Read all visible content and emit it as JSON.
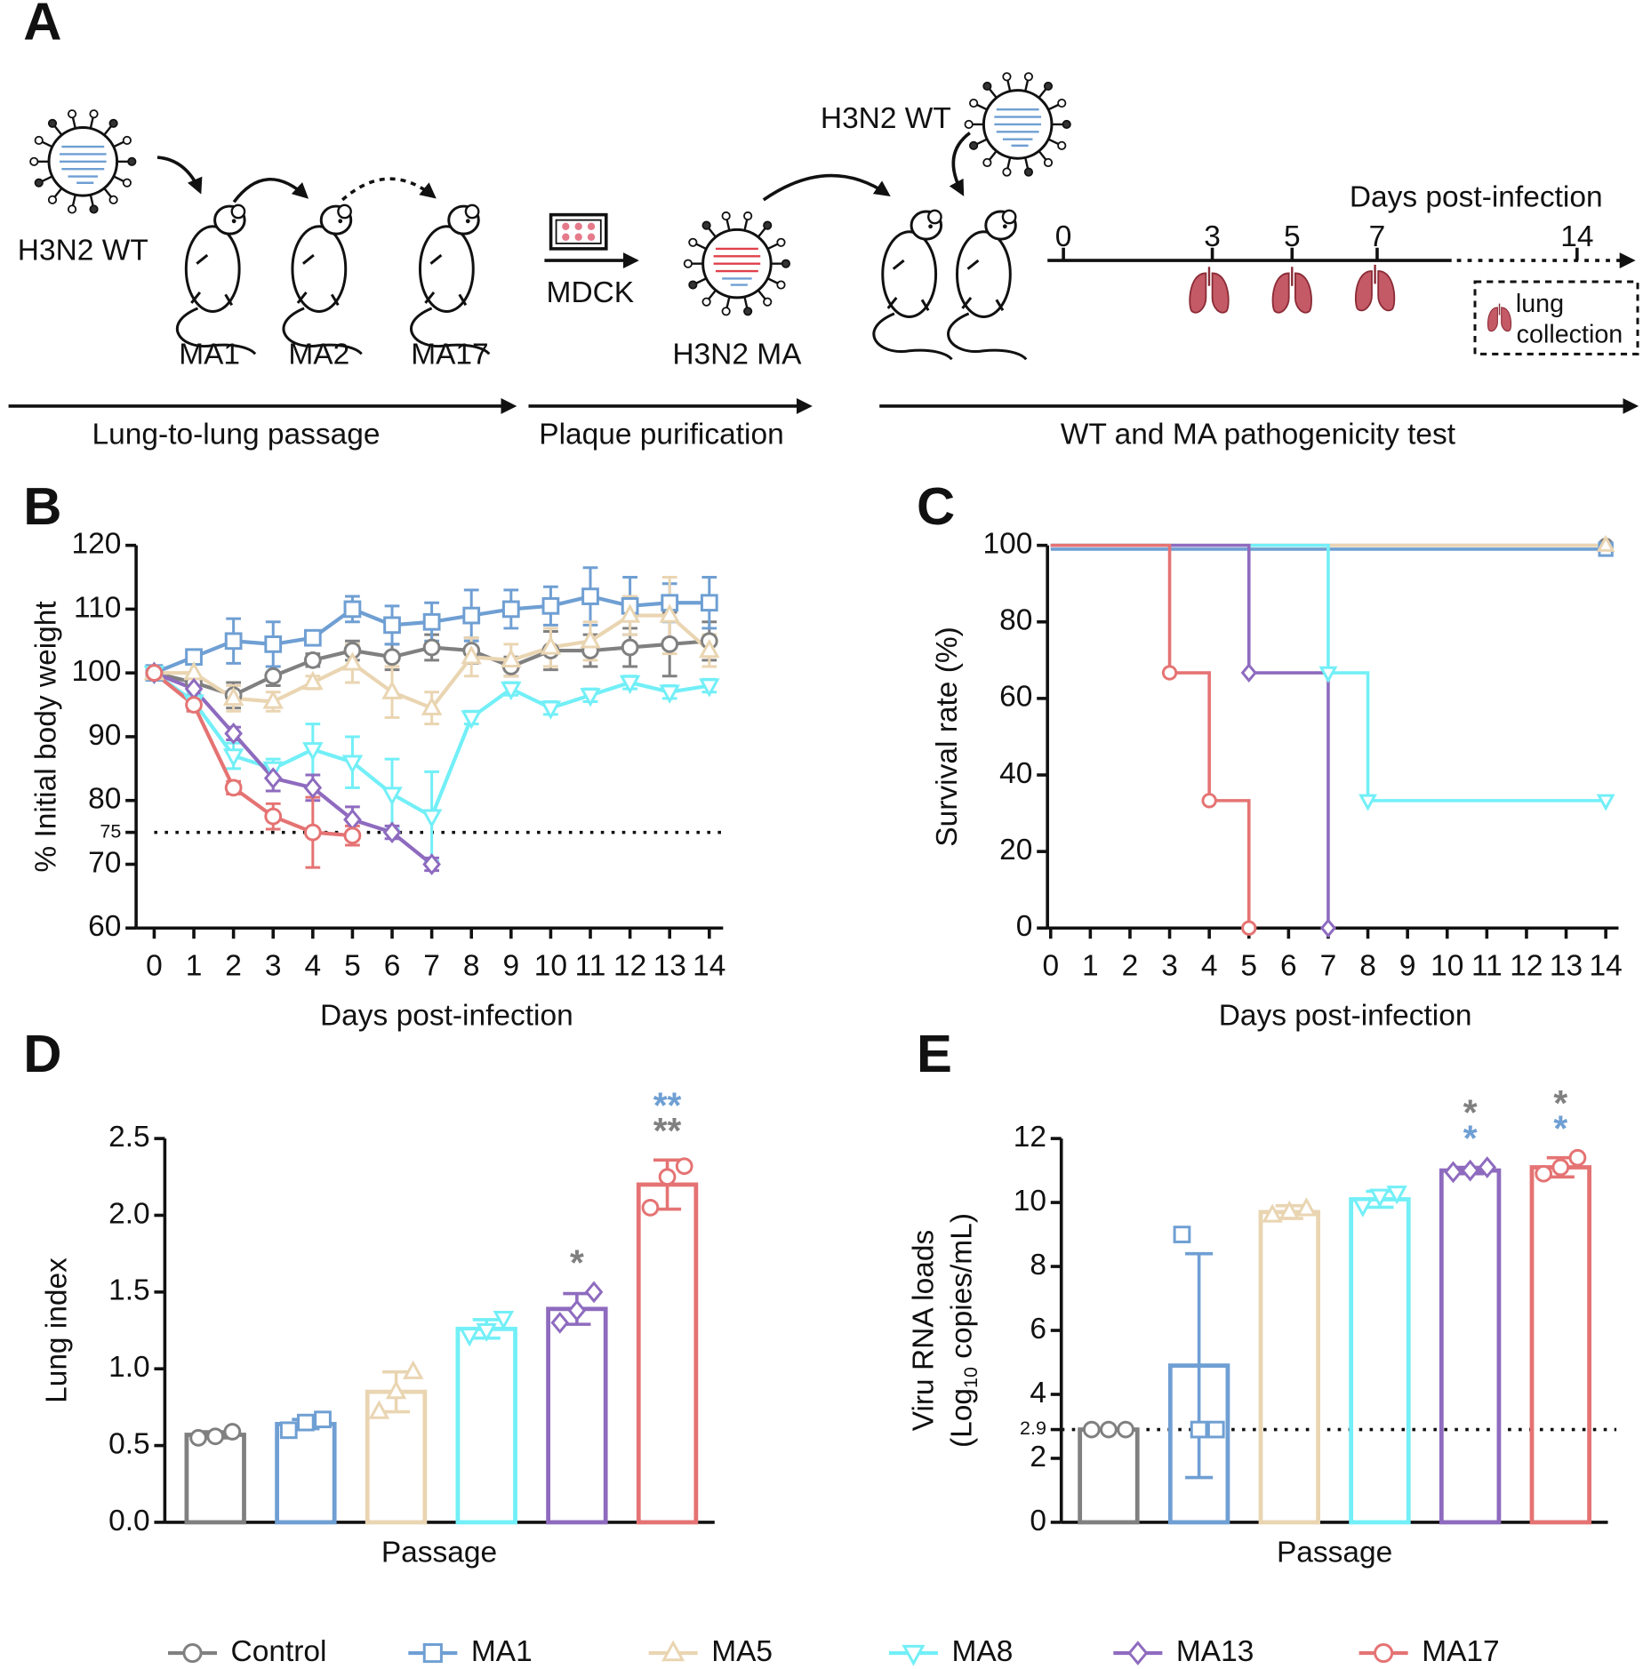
{
  "diagram": {
    "label": "A",
    "wt_label": "H3N2 WT",
    "passages": [
      "MA1",
      "MA2",
      "MA17"
    ],
    "cell_label": "MDCK",
    "ma_label": "H3N2 MA",
    "wt_label_2": "H3N2 WT",
    "timeline_title": "Days post-infection",
    "timeline_ticks": [
      "0",
      "3",
      "5",
      "7",
      "14"
    ],
    "box_label": [
      "lung",
      "collection"
    ],
    "stages": [
      "Lung-to-lung passage",
      "Plaque purification",
      "WT and MA pathogenicity test"
    ]
  },
  "chart_data": [
    {
      "panel": "B",
      "type": "line",
      "xlabel": "Days post-infection",
      "ylabel": "% Initial body weight",
      "x": [
        0,
        1,
        2,
        3,
        4,
        5,
        6,
        7,
        8,
        9,
        10,
        11,
        12,
        13,
        14
      ],
      "xlim": [
        0,
        14
      ],
      "xticks": [
        0,
        1,
        2,
        3,
        4,
        5,
        6,
        7,
        8,
        9,
        10,
        11,
        12,
        13,
        14
      ],
      "ylim": [
        60,
        120
      ],
      "yticks": [
        60,
        70,
        75,
        80,
        90,
        100,
        110,
        120
      ],
      "threshold": 75,
      "series": [
        {
          "name": "Control",
          "color": "#808080",
          "marker": "circle",
          "values": [
            100,
            98.5,
            96.5,
            99.5,
            102,
            103.5,
            102.5,
            104,
            103.5,
            101,
            103.5,
            103.5,
            104,
            104.5,
            105
          ],
          "errors": [
            0,
            1,
            2,
            1.5,
            1,
            1.5,
            2,
            2,
            2,
            1.5,
            3,
            2.5,
            3,
            5,
            3
          ]
        },
        {
          "name": "MA1",
          "color": "#6f9fd3",
          "marker": "square",
          "values": [
            100,
            102.5,
            105,
            104.5,
            105.5,
            110,
            107.5,
            108,
            109,
            110,
            110.5,
            112,
            110.5,
            111,
            111
          ],
          "errors": [
            0,
            1,
            3.5,
            3.5,
            1,
            2,
            3,
            3,
            4,
            3,
            3,
            4.5,
            4.5,
            3,
            4
          ]
        },
        {
          "name": "MA5",
          "color": "#ead5b2",
          "marker": "triangle-up",
          "values": [
            100,
            100,
            96,
            95.5,
            98.5,
            101.5,
            97,
            94.5,
            102.5,
            102,
            104,
            105,
            109,
            109,
            103.5
          ],
          "errors": [
            0,
            1.5,
            2,
            1.5,
            1,
            3,
            4,
            2.5,
            3,
            2.5,
            3,
            3,
            3,
            6,
            2.5
          ]
        },
        {
          "name": "MA8",
          "color": "#72eff7",
          "marker": "triangle-down",
          "values": [
            100,
            95.5,
            87,
            85,
            88,
            86,
            81,
            77.5,
            93,
            97.5,
            94.5,
            96.5,
            98.5,
            97,
            98
          ],
          "errors": [
            0,
            1.5,
            2,
            1.5,
            4,
            4,
            5.5,
            7,
            1,
            1,
            1,
            1,
            1,
            1,
            1
          ]
        },
        {
          "name": "MA13",
          "color": "#8e6bbf",
          "marker": "diamond",
          "values": [
            100,
            97.5,
            90.5,
            83.5,
            82,
            77,
            75,
            70,
            null,
            null,
            null,
            null,
            null,
            null,
            null
          ],
          "errors": [
            0,
            1,
            1,
            2,
            2,
            2,
            1,
            1,
            null,
            null,
            null,
            null,
            null,
            null,
            null
          ]
        },
        {
          "name": "MA17",
          "color": "#e57373",
          "marker": "circle",
          "values": [
            100,
            95,
            82,
            77.5,
            75,
            74.5,
            null,
            null,
            null,
            null,
            null,
            null,
            null,
            null,
            null
          ],
          "errors": [
            0,
            1,
            1,
            2,
            5.5,
            1.5,
            null,
            null,
            null,
            null,
            null,
            null,
            null,
            null,
            null
          ]
        }
      ]
    },
    {
      "panel": "C",
      "type": "step",
      "xlabel": "Days post-infection",
      "ylabel": "Survival rate (%)",
      "xlim": [
        0,
        14
      ],
      "xticks": [
        0,
        1,
        2,
        3,
        4,
        5,
        6,
        7,
        8,
        9,
        10,
        11,
        12,
        13,
        14
      ],
      "ylim": [
        0,
        100
      ],
      "yticks": [
        0,
        20,
        40,
        60,
        80,
        100
      ],
      "series": [
        {
          "color": "#808080",
          "marker": "circle",
          "x": [
            0,
            14
          ],
          "values": [
            100,
            100
          ]
        },
        {
          "color": "#6f9fd3",
          "marker": "square",
          "x": [
            0,
            14
          ],
          "values": [
            99,
            99
          ]
        },
        {
          "color": "#ead5b2",
          "marker": "triangle-up",
          "x": [
            0,
            14
          ],
          "values": [
            100,
            100
          ]
        },
        {
          "color": "#72eff7",
          "marker": "triangle-down",
          "x": [
            0,
            7,
            8,
            14
          ],
          "values": [
            100,
            66.7,
            33.3,
            33.3
          ]
        },
        {
          "color": "#8e6bbf",
          "marker": "diamond",
          "x": [
            0,
            5,
            7
          ],
          "values": [
            100,
            66.7,
            0
          ]
        },
        {
          "color": "#e57373",
          "marker": "circle",
          "x": [
            0,
            3,
            4,
            5
          ],
          "values": [
            100,
            66.7,
            33.3,
            0
          ]
        }
      ]
    },
    {
      "panel": "D",
      "type": "bar",
      "xlabel": "Passage",
      "ylabel": "Lung index",
      "ylim": [
        0,
        2.5
      ],
      "yticks": [
        {
          "value": 0,
          "label": "0.0"
        },
        0.5,
        {
          "value": 1,
          "label": "1.0"
        },
        1.5,
        {
          "value": 2,
          "label": "2.0"
        },
        2.5
      ],
      "colors": [
        "#808080",
        "#6f9fd3",
        "#ead5b2",
        "#72eff7",
        "#8e6bbf",
        "#e57373"
      ],
      "markers": [
        "circle",
        "square",
        "triangle-up",
        "triangle-down",
        "diamond",
        "circle"
      ],
      "values": [
        0.57,
        0.64,
        0.85,
        1.26,
        1.39,
        2.2
      ],
      "errors": [
        0.02,
        0.03,
        0.13,
        0.06,
        0.1,
        0.16
      ],
      "points": [
        [
          0.55,
          0.56,
          0.59
        ],
        [
          0.6,
          0.65,
          0.67
        ],
        [
          0.72,
          0.85,
          0.98
        ],
        [
          1.22,
          1.25,
          1.33
        ],
        [
          1.3,
          1.38,
          1.5
        ],
        [
          2.05,
          2.25,
          2.32
        ]
      ],
      "annotations": [
        {
          "text": "*",
          "color": "#808080",
          "index": 4
        },
        {
          "text": "**",
          "color": "#808080",
          "index": 5
        },
        {
          "text": "**",
          "color": "#6f9fd3",
          "index": 5
        }
      ]
    },
    {
      "panel": "E",
      "type": "bar",
      "xlabel": "Passage",
      "ylabel": "Viru RNA loads",
      "ylabel2": [
        "(Log",
        "10",
        " copies/mL)"
      ],
      "ylim": [
        0,
        12
      ],
      "yticks": [
        0,
        2,
        2.9,
        4,
        6,
        8,
        10,
        12
      ],
      "threshold": 2.9,
      "colors": [
        "#808080",
        "#6f9fd3",
        "#ead5b2",
        "#72eff7",
        "#8e6bbf",
        "#e57373"
      ],
      "markers": [
        "circle",
        "square",
        "triangle-up",
        "triangle-down",
        "diamond",
        "circle"
      ],
      "values": [
        2.9,
        4.9,
        9.7,
        10.1,
        11.0,
        11.1
      ],
      "errors": [
        0,
        3.5,
        0.2,
        0.25,
        0.1,
        0.3
      ],
      "points": [
        [
          2.9,
          2.9,
          2.9
        ],
        [
          9.0,
          2.9,
          2.9
        ],
        [
          9.6,
          9.7,
          9.8
        ],
        [
          9.9,
          10.2,
          10.3
        ],
        [
          10.95,
          11.0,
          11.1
        ],
        [
          10.9,
          11.1,
          11.4
        ]
      ],
      "annotations": [
        {
          "text": "*",
          "color": "#6f9fd3",
          "index": 4
        },
        {
          "text": "*",
          "color": "#808080",
          "index": 4
        },
        {
          "text": "*",
          "color": "#6f9fd3",
          "index": 5
        },
        {
          "text": "*",
          "color": "#808080",
          "index": 5
        }
      ]
    }
  ]
}
